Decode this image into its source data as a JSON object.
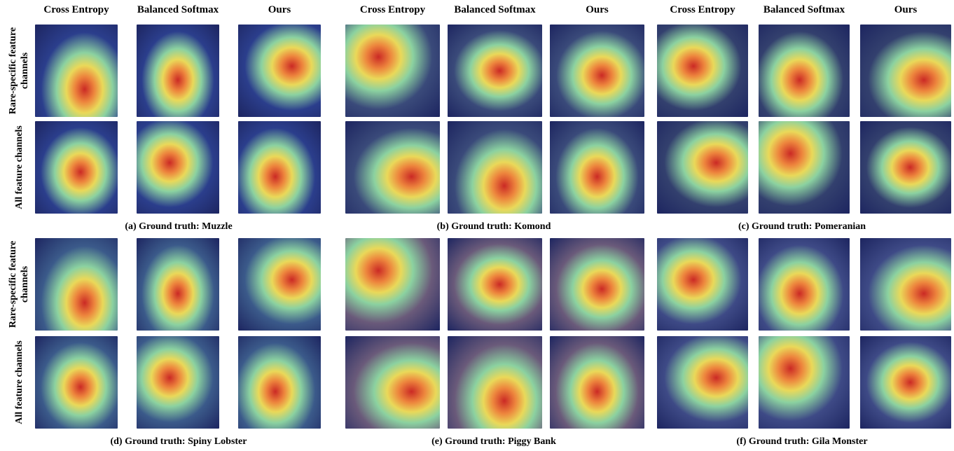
{
  "columns": [
    "Cross Entropy",
    "Balanced Softmax",
    "Ours"
  ],
  "row_labels": [
    "Rare-specific feature channels",
    "All feature channels"
  ],
  "panels": [
    {
      "caption": "(a) Ground truth:  Muzzle"
    },
    {
      "caption": "(b) Ground truth:  Komond"
    },
    {
      "caption": "(c) Ground truth:  Pomeranian"
    },
    {
      "caption": "(d) Ground truth:  Spiny Lobster"
    },
    {
      "caption": "(e) Ground truth:  Piggy Bank"
    },
    {
      "caption": "(f) Ground truth:  Gila Monster"
    }
  ]
}
